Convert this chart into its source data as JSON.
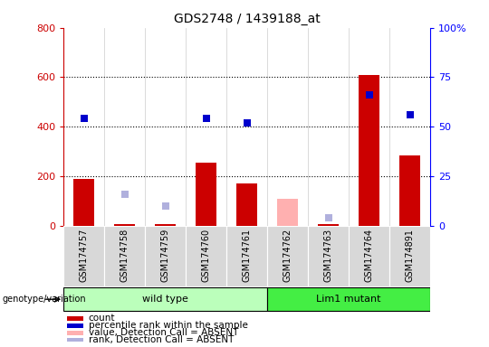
{
  "title": "GDS2748 / 1439188_at",
  "samples": [
    "GSM174757",
    "GSM174758",
    "GSM174759",
    "GSM174760",
    "GSM174761",
    "GSM174762",
    "GSM174763",
    "GSM174764",
    "GSM174891"
  ],
  "count": [
    190,
    5,
    5,
    255,
    170,
    0,
    5,
    610,
    285
  ],
  "count_absent": [
    0,
    0,
    0,
    0,
    0,
    110,
    0,
    0,
    0
  ],
  "percentile": [
    54,
    0,
    0,
    54,
    52,
    0,
    0,
    66,
    56
  ],
  "rank_absent_pct": [
    0,
    16,
    10,
    0,
    0,
    0,
    4,
    0,
    0
  ],
  "is_absent_count": [
    false,
    false,
    false,
    false,
    false,
    true,
    false,
    false,
    false
  ],
  "is_absent_rank": [
    false,
    true,
    true,
    false,
    false,
    false,
    true,
    false,
    false
  ],
  "wild_type_indices": [
    0,
    1,
    2,
    3,
    4
  ],
  "lim1_mutant_indices": [
    5,
    6,
    7,
    8
  ],
  "ylim_left": [
    0,
    800
  ],
  "ylim_right": [
    0,
    100
  ],
  "yticks_left": [
    0,
    200,
    400,
    600,
    800
  ],
  "yticks_right": [
    0,
    25,
    50,
    75,
    100
  ],
  "yticklabels_right": [
    "0",
    "25",
    "50",
    "75",
    "100%"
  ],
  "bar_width": 0.5,
  "count_color": "#cc0000",
  "count_absent_color": "#ffb0b0",
  "percentile_color": "#0000cc",
  "rank_absent_color": "#b0b0dd",
  "wt_color": "#bbffbb",
  "mut_color": "#44ee44",
  "legend_items": [
    {
      "label": "count",
      "color": "#cc0000"
    },
    {
      "label": "percentile rank within the sample",
      "color": "#0000cc"
    },
    {
      "label": "value, Detection Call = ABSENT",
      "color": "#ffb0b0"
    },
    {
      "label": "rank, Detection Call = ABSENT",
      "color": "#b0b0dd"
    }
  ]
}
